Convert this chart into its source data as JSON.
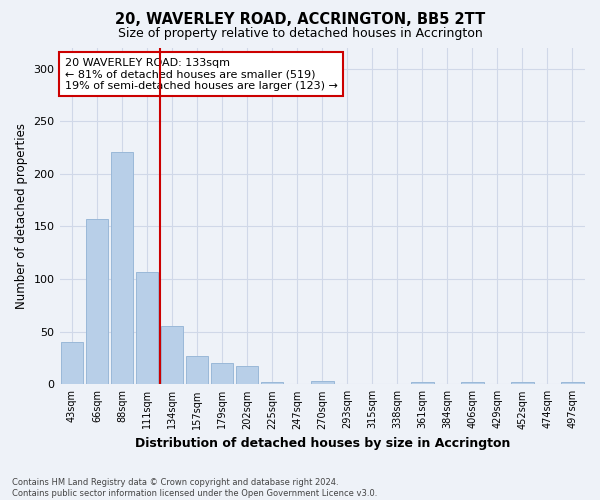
{
  "title": "20, WAVERLEY ROAD, ACCRINGTON, BB5 2TT",
  "subtitle": "Size of property relative to detached houses in Accrington",
  "xlabel": "Distribution of detached houses by size in Accrington",
  "ylabel": "Number of detached properties",
  "categories": [
    "43sqm",
    "66sqm",
    "88sqm",
    "111sqm",
    "134sqm",
    "157sqm",
    "179sqm",
    "202sqm",
    "225sqm",
    "247sqm",
    "270sqm",
    "293sqm",
    "315sqm",
    "338sqm",
    "361sqm",
    "384sqm",
    "406sqm",
    "429sqm",
    "452sqm",
    "474sqm",
    "497sqm"
  ],
  "values": [
    40,
    157,
    221,
    107,
    55,
    27,
    20,
    17,
    2,
    0,
    3,
    0,
    0,
    0,
    2,
    0,
    2,
    0,
    2,
    0,
    2
  ],
  "bar_color": "#b8cfe8",
  "bar_edge_color": "#9ab8d8",
  "grid_color": "#d0d8e8",
  "bg_color": "#eef2f8",
  "vline_color": "#cc0000",
  "annotation_text": "20 WAVERLEY ROAD: 133sqm\n← 81% of detached houses are smaller (519)\n19% of semi-detached houses are larger (123) →",
  "annotation_box_color": "#ffffff",
  "annotation_box_edge": "#cc0000",
  "footer": "Contains HM Land Registry data © Crown copyright and database right 2024.\nContains public sector information licensed under the Open Government Licence v3.0.",
  "ylim": [
    0,
    320
  ],
  "yticks": [
    0,
    50,
    100,
    150,
    200,
    250,
    300
  ]
}
